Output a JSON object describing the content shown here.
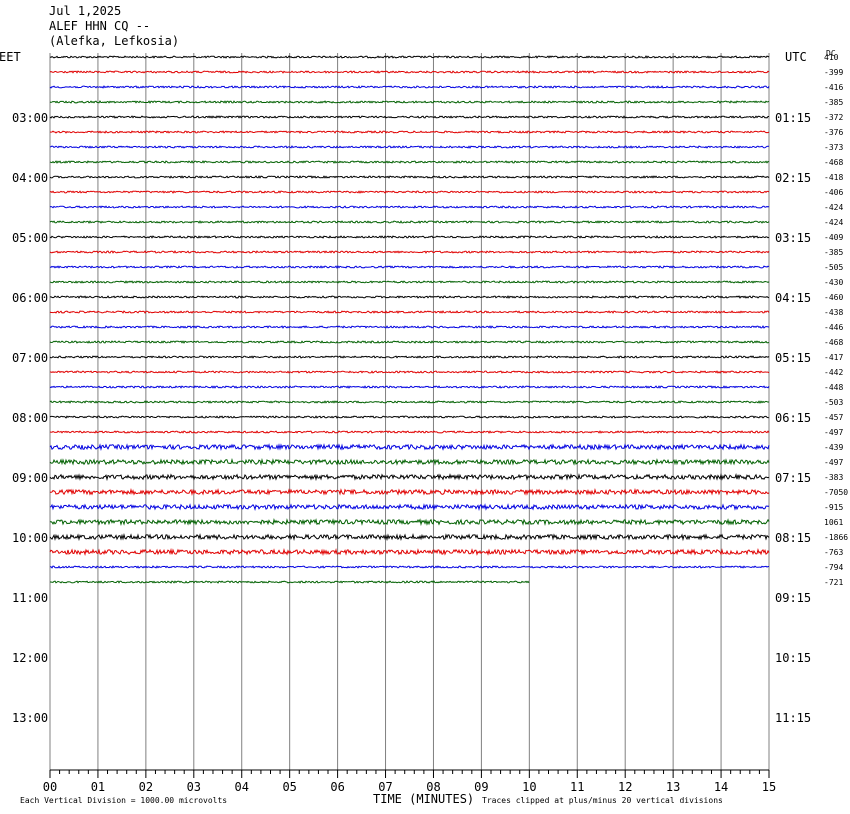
{
  "header": {
    "date": "Jul 1,2025",
    "station": "ALEF HHN CQ --",
    "location": "(Alefka, Lefkosia)"
  },
  "left_zone_label": "EET",
  "right_zone_label": "UTC",
  "dc_label": "DC",
  "footer": {
    "scale_note": "Each Vertical Division = 1000.00 microvolts",
    "xlabel": "TIME (MINUTES)",
    "clip_note": "Traces clipped at plus/minus 20 vertical divisions"
  },
  "chart_data": {
    "type": "line",
    "xlabel": "TIME (MINUTES)",
    "xlim": [
      0,
      15
    ],
    "x_ticks": [
      "00",
      "01",
      "02",
      "03",
      "04",
      "05",
      "06",
      "07",
      "08",
      "09",
      "10",
      "11",
      "12",
      "13",
      "14",
      "15"
    ],
    "row_interval_minutes": 15,
    "left_time_labels": [
      "03:00",
      "04:00",
      "05:00",
      "06:00",
      "07:00",
      "08:00",
      "09:00",
      "10:00",
      "11:00",
      "12:00",
      "13:00"
    ],
    "right_time_labels": [
      "01:15",
      "02:15",
      "03:15",
      "04:15",
      "05:15",
      "06:15",
      "07:15",
      "08:15",
      "09:15",
      "10:15",
      "11:15"
    ],
    "trace_colors": [
      "#000000",
      "#e00000",
      "#0000e0",
      "#006000"
    ],
    "dc_offsets": [
      "410",
      "-399",
      "-416",
      "-385",
      "-372",
      "-376",
      "-373",
      "-468",
      "-418",
      "-406",
      "-424",
      "-424",
      "-409",
      "-385",
      "-505",
      "-430",
      "-460",
      "-438",
      "-446",
      "-468",
      "-417",
      "-442",
      "-448",
      "-503",
      "-457",
      "-497",
      "-439",
      "-497",
      "-383",
      "-7050",
      "-915",
      "1061",
      "-1866",
      "-763",
      "-794",
      "-721"
    ],
    "last_trace_end_minute": 10.0
  }
}
